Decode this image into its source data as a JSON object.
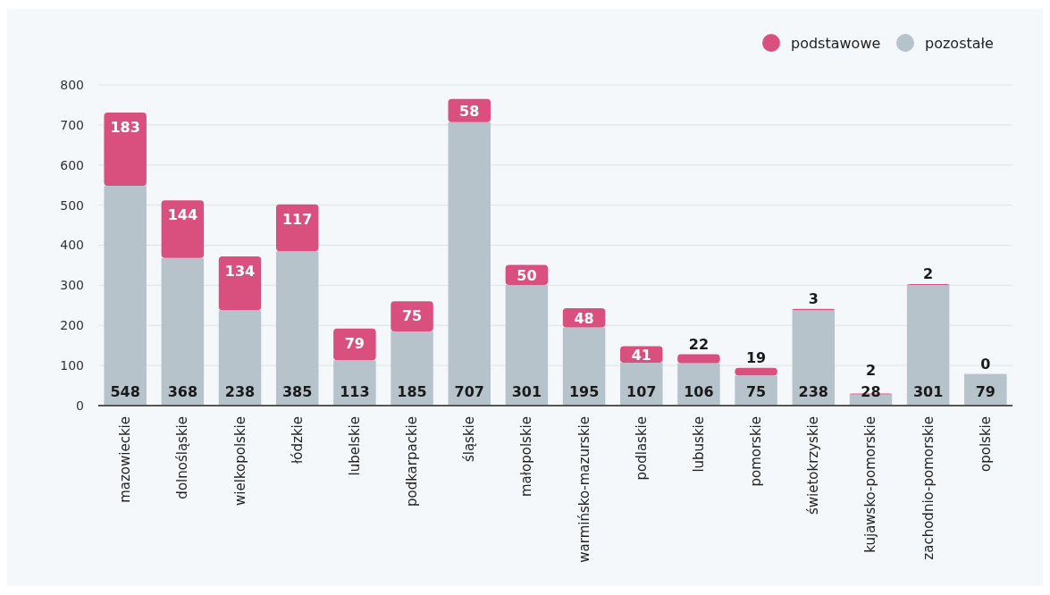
{
  "chart_data": {
    "type": "bar",
    "stacked": true,
    "categories": [
      "mazowieckie",
      "dolnośląskie",
      "wielkopolskie",
      "łódzkie",
      "lubelskie",
      "podkarpackie",
      "śląskie",
      "małopolskie",
      "warmińsko-mazurskie",
      "podlaskie",
      "lubuskie",
      "pomorskie",
      "świetokrzyskie",
      "kujawsko-pomorskie",
      "zachodnio-pomorskie",
      "opolskie"
    ],
    "series": [
      {
        "name": "pozostałe",
        "color": "#b7c3ca",
        "values": [
          548,
          368,
          238,
          385,
          113,
          185,
          707,
          301,
          195,
          107,
          106,
          75,
          238,
          28,
          301,
          79
        ]
      },
      {
        "name": "podstawowe",
        "color": "#d9507f",
        "values": [
          183,
          144,
          134,
          117,
          79,
          75,
          58,
          50,
          48,
          41,
          22,
          19,
          3,
          2,
          2,
          0
        ]
      }
    ],
    "ylim": [
      0,
      800
    ],
    "yticks": [
      0,
      100,
      200,
      300,
      400,
      500,
      600,
      700,
      800
    ],
    "grid": "y",
    "legend": "top right",
    "data_labels": true,
    "marker": "circle"
  }
}
